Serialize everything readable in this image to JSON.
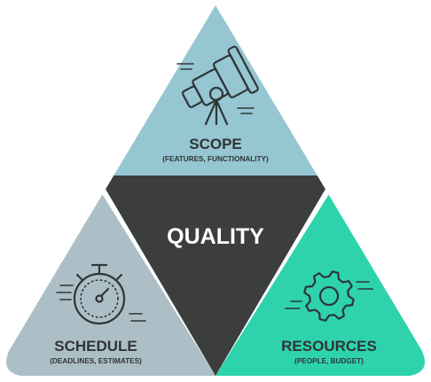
{
  "center": {
    "label": "QUALITY"
  },
  "scope": {
    "title": "SCOPE",
    "subtitle": "(FEATURES, FUNCTIONALITY)",
    "icon": "telescope-icon",
    "color": "#95c6d2"
  },
  "schedule": {
    "title": "SCHEDULE",
    "subtitle": "(DEADLINES, ESTIMATES)",
    "icon": "stopwatch-icon",
    "color": "#adbfc6"
  },
  "resources": {
    "title": "RESOURCES",
    "subtitle": "(PEOPLE, BUDGET)",
    "icon": "gear-icon",
    "color": "#2ed3ae"
  },
  "center_color": "#3b3e3d"
}
